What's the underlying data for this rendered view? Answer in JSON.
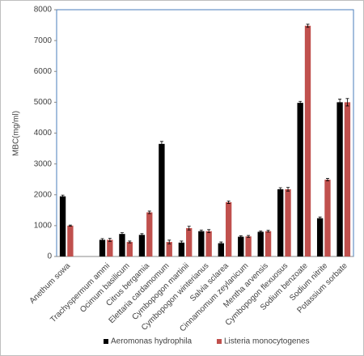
{
  "chart_data": {
    "type": "bar",
    "y_label": "MBC(mg/ml)",
    "categories": [
      "Anethum sowa",
      null,
      "Trachyspermum ammi",
      "Ocimum basilicum",
      "Citrus bergamia",
      "Elettaria cardamomum",
      "Cymbopogon martinii",
      "Cymbopogon winterianus",
      "Salvia sclarea",
      "Cinnamomum zeylanicum",
      "Mentha arvensis",
      "Cymbopogon flexuosus",
      "Sodium benzoate",
      "Sodium nitrite",
      "Potassium sorbate"
    ],
    "series": [
      {
        "name": "Aeromonas hydrophila",
        "color": "#000000",
        "values": [
          1950,
          null,
          540,
          730,
          700,
          3650,
          450,
          820,
          430,
          640,
          800,
          2180,
          4980,
          1240,
          5000
        ],
        "errors": [
          40,
          null,
          40,
          40,
          40,
          80,
          50,
          40,
          40,
          30,
          30,
          50,
          50,
          40,
          100
        ]
      },
      {
        "name": "Listeria monocytogenes",
        "color": "#c0504d",
        "values": [
          1000,
          null,
          540,
          470,
          1430,
          470,
          920,
          820,
          1760,
          650,
          820,
          2180,
          7480,
          2490,
          5000
        ],
        "errors": [
          20,
          null,
          50,
          30,
          40,
          60,
          60,
          50,
          40,
          30,
          30,
          60,
          50,
          40,
          120
        ]
      }
    ],
    "ylim": [
      0,
      8000
    ],
    "yticks": [
      0,
      1000,
      2000,
      3000,
      4000,
      5000,
      6000,
      7000,
      8000
    ],
    "legend": "bottom"
  }
}
